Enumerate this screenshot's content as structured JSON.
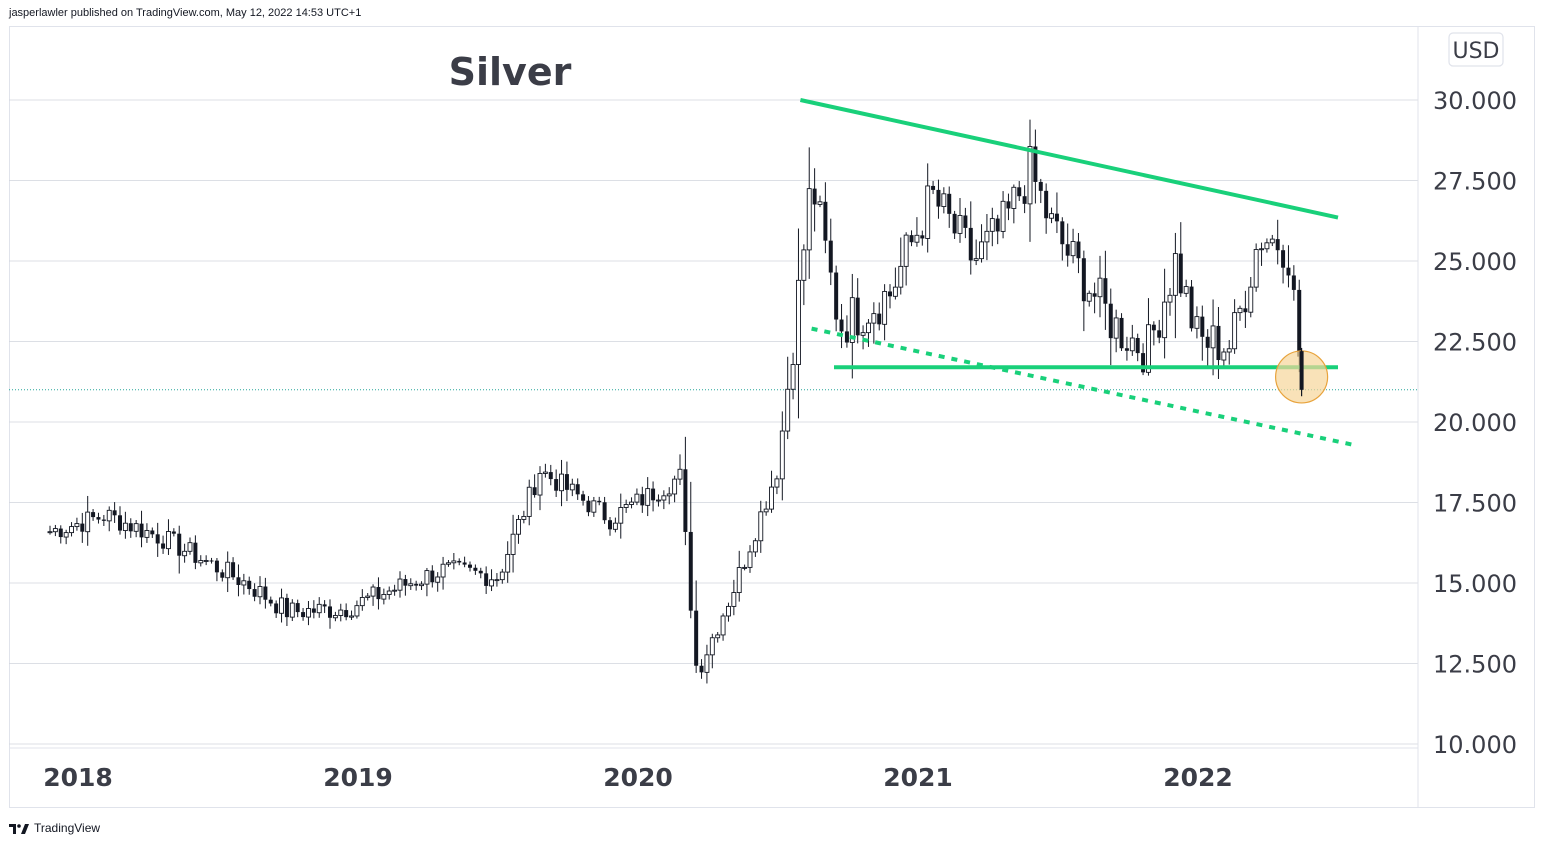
{
  "header": {
    "published_text": "jasperlawler published on TradingView.com, May 12, 2022 14:53 UTC+1"
  },
  "footer": {
    "brand": "TradingView"
  },
  "colors": {
    "trendline": "#19d07a",
    "candle_down": "#131722",
    "highlight_fill": "#f7d59a",
    "highlight_stroke": "#e8a33c",
    "grid": "#d1d4dc",
    "text": "#3b3d47"
  },
  "chart_data": {
    "type": "candlestick",
    "title": "Silver",
    "currency_label": "USD",
    "frequency": "weekly",
    "ylim": [
      10,
      32
    ],
    "y_ticks": [
      "30.000",
      "27.500",
      "25.000",
      "22.500",
      "20.000",
      "17.500",
      "15.000",
      "12.500",
      "10.000"
    ],
    "y_tick_values": [
      30,
      27.5,
      25,
      22.5,
      20,
      17.5,
      15,
      12.5,
      10
    ],
    "x_ticks": [
      "2018",
      "2019",
      "2020",
      "2021",
      "2022"
    ],
    "x_tick_dates": [
      2018.0,
      2019.0,
      2020.0,
      2021.0,
      2022.0
    ],
    "xlim": [
      2017.87,
      2022.95
    ],
    "current_price": 21.0,
    "key_points": [
      {
        "date": 2017.9,
        "price": 16.6
      },
      {
        "date": 2018.1,
        "price": 17.1
      },
      {
        "date": 2018.3,
        "price": 16.4
      },
      {
        "date": 2018.6,
        "price": 15.0
      },
      {
        "date": 2018.75,
        "price": 14.1
      },
      {
        "date": 2018.95,
        "price": 14.2
      },
      {
        "date": 2019.3,
        "price": 15.4
      },
      {
        "date": 2019.5,
        "price": 15.2
      },
      {
        "date": 2019.65,
        "price": 18.5
      },
      {
        "date": 2019.9,
        "price": 17.0
      },
      {
        "date": 2020.15,
        "price": 18.3
      },
      {
        "date": 2020.21,
        "price": 12.2
      },
      {
        "date": 2020.35,
        "price": 15.0
      },
      {
        "date": 2020.5,
        "price": 18.6
      },
      {
        "date": 2020.58,
        "price": 24.5
      },
      {
        "date": 2020.62,
        "price": 27.5
      },
      {
        "date": 2020.72,
        "price": 23.0
      },
      {
        "date": 2020.9,
        "price": 24.0
      },
      {
        "date": 2021.05,
        "price": 27.0
      },
      {
        "date": 2021.2,
        "price": 25.0
      },
      {
        "date": 2021.3,
        "price": 26.0
      },
      {
        "date": 2021.4,
        "price": 27.8
      },
      {
        "date": 2021.48,
        "price": 26.0
      },
      {
        "date": 2021.7,
        "price": 23.0
      },
      {
        "date": 2021.82,
        "price": 22.2
      },
      {
        "date": 2021.92,
        "price": 25.0
      },
      {
        "date": 2022.0,
        "price": 22.5
      },
      {
        "date": 2022.12,
        "price": 22.4
      },
      {
        "date": 2022.22,
        "price": 25.8
      },
      {
        "date": 2022.32,
        "price": 25.5
      },
      {
        "date": 2022.36,
        "price": 22.3
      },
      {
        "date": 2022.37,
        "price": 21.0
      }
    ],
    "annotations": [
      {
        "type": "trendline",
        "style": "solid",
        "from": {
          "date": 2020.58,
          "price": 30.0
        },
        "to": {
          "date": 2022.5,
          "price": 26.35
        }
      },
      {
        "type": "trendline",
        "style": "solid",
        "from": {
          "date": 2020.7,
          "price": 21.7
        },
        "to": {
          "date": 2022.5,
          "price": 21.7
        }
      },
      {
        "type": "trendline",
        "style": "dotted",
        "from": {
          "date": 2020.62,
          "price": 22.9
        },
        "to": {
          "date": 2022.55,
          "price": 19.3
        }
      },
      {
        "type": "circle",
        "center": {
          "date": 2022.37,
          "price": 21.4
        }
      }
    ]
  }
}
